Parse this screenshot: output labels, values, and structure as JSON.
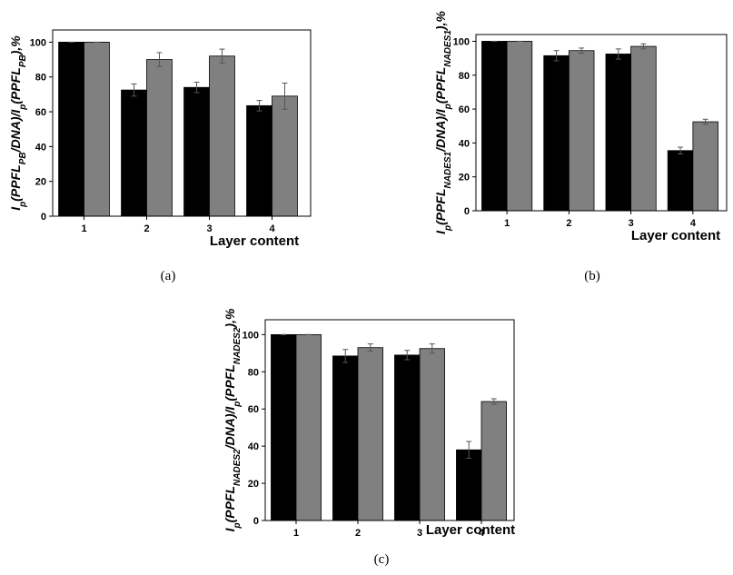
{
  "chart_data": [
    {
      "type": "bar",
      "panel_label": "(a)",
      "xlabel": "Layer content",
      "ylabel": [
        {
          "text": "I"
        },
        {
          "text": "p",
          "sub": true
        },
        {
          "text": "(PPFL"
        },
        {
          "text": "PB",
          "sub": true
        },
        {
          "text": "/DNA)/I"
        },
        {
          "text": "p",
          "sub": true
        },
        {
          "text": "(PPFL"
        },
        {
          "text": "PB",
          "sub": true
        },
        {
          "text": "),%"
        }
      ],
      "categories": [
        "1",
        "2",
        "3",
        "4"
      ],
      "series": [
        {
          "color": "#000000",
          "values": [
            100,
            72.5,
            74,
            63.5
          ],
          "errors": [
            0,
            3.5,
            3,
            3
          ]
        },
        {
          "color": "#808080",
          "values": [
            100,
            90,
            92,
            69
          ],
          "errors": [
            0,
            4,
            4,
            7.5
          ]
        }
      ],
      "ylim": [
        0,
        107
      ],
      "yticks": [
        0,
        20,
        40,
        60,
        80,
        100
      ]
    },
    {
      "type": "bar",
      "panel_label": "(b)",
      "xlabel": "Layer content",
      "ylabel": [
        {
          "text": "I"
        },
        {
          "text": "p",
          "sub": true
        },
        {
          "text": "(PPFL"
        },
        {
          "text": "NADES1",
          "sub": true
        },
        {
          "text": "/DNA)/I"
        },
        {
          "text": "p",
          "sub": true
        },
        {
          "text": "(PPFL"
        },
        {
          "text": "NADES1",
          "sub": true
        },
        {
          "text": "),%"
        }
      ],
      "categories": [
        "1",
        "2",
        "3",
        "4"
      ],
      "series": [
        {
          "color": "#000000",
          "values": [
            100,
            91.5,
            92.5,
            35.5
          ],
          "errors": [
            0,
            3,
            3,
            2
          ]
        },
        {
          "color": "#808080",
          "values": [
            100,
            94.5,
            97,
            52.5
          ],
          "errors": [
            0,
            1.5,
            1.5,
            1.5
          ]
        }
      ],
      "ylim": [
        0,
        104
      ],
      "yticks": [
        0,
        20,
        40,
        60,
        80,
        100
      ]
    },
    {
      "type": "bar",
      "panel_label": "(c)",
      "xlabel": "Layer content",
      "ylabel": [
        {
          "text": "I"
        },
        {
          "text": "p",
          "sub": true
        },
        {
          "text": "(PPFL"
        },
        {
          "text": "NADES2",
          "sub": true
        },
        {
          "text": "/DNA)/I"
        },
        {
          "text": "p",
          "sub": true
        },
        {
          "text": "(PPFL"
        },
        {
          "text": "NADES2",
          "sub": true
        },
        {
          "text": "),%"
        }
      ],
      "categories": [
        "1",
        "2",
        "3",
        "4"
      ],
      "series": [
        {
          "color": "#000000",
          "values": [
            100,
            88.5,
            89,
            38
          ],
          "errors": [
            0,
            3.5,
            2.5,
            4.5
          ]
        },
        {
          "color": "#808080",
          "values": [
            100,
            93,
            92.5,
            64
          ],
          "errors": [
            0,
            2,
            2.5,
            1.5
          ]
        }
      ],
      "ylim": [
        0,
        108
      ],
      "yticks": [
        0,
        20,
        40,
        60,
        80,
        100
      ]
    }
  ]
}
